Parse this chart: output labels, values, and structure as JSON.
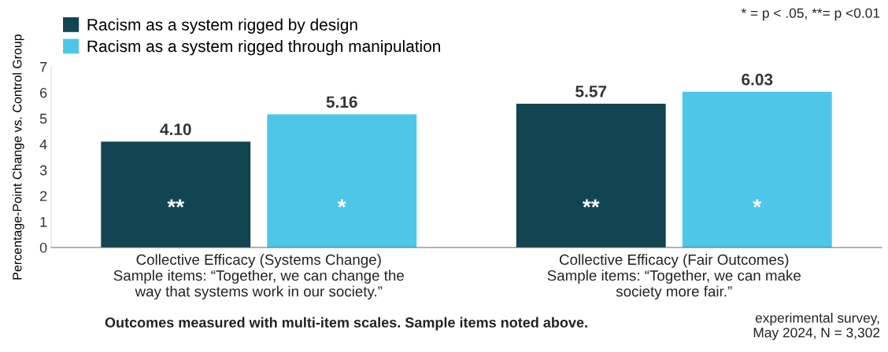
{
  "chart_data": {
    "type": "bar",
    "ylabel": "Percentage-Point Change vs. Control Group",
    "categories": [
      "Collective Efficacy (Systems Change)\nSample items: “Together, we can change the\nway that systems work in our society.”",
      "Collective Efficacy (Fair Outcomes)\nSample items: “Together, we can make\nsociety more fair.”"
    ],
    "series": [
      {
        "name": "Racism as a system rigged by design",
        "color": "#134452",
        "values": [
          4.1,
          5.57
        ]
      },
      {
        "name": "Racism as a system rigged through manipulation",
        "color": "#4ec6e8",
        "values": [
          5.16,
          6.03
        ]
      }
    ],
    "value_labels": [
      [
        "4.10",
        "5.57"
      ],
      [
        "5.16",
        "6.03"
      ]
    ],
    "ylim": [
      0,
      7
    ],
    "yticks": [
      0,
      1,
      2,
      3,
      4,
      5,
      6,
      7
    ],
    "grid": false,
    "legend": "top left",
    "annotations": [
      "**",
      "*",
      "**",
      "*",
      "* = p < .05, **= p <0.01",
      "Outcomes measured with multi-item scales. Sample items noted above.",
      "experimental survey,\nMay 2024, N = 3,302"
    ]
  }
}
